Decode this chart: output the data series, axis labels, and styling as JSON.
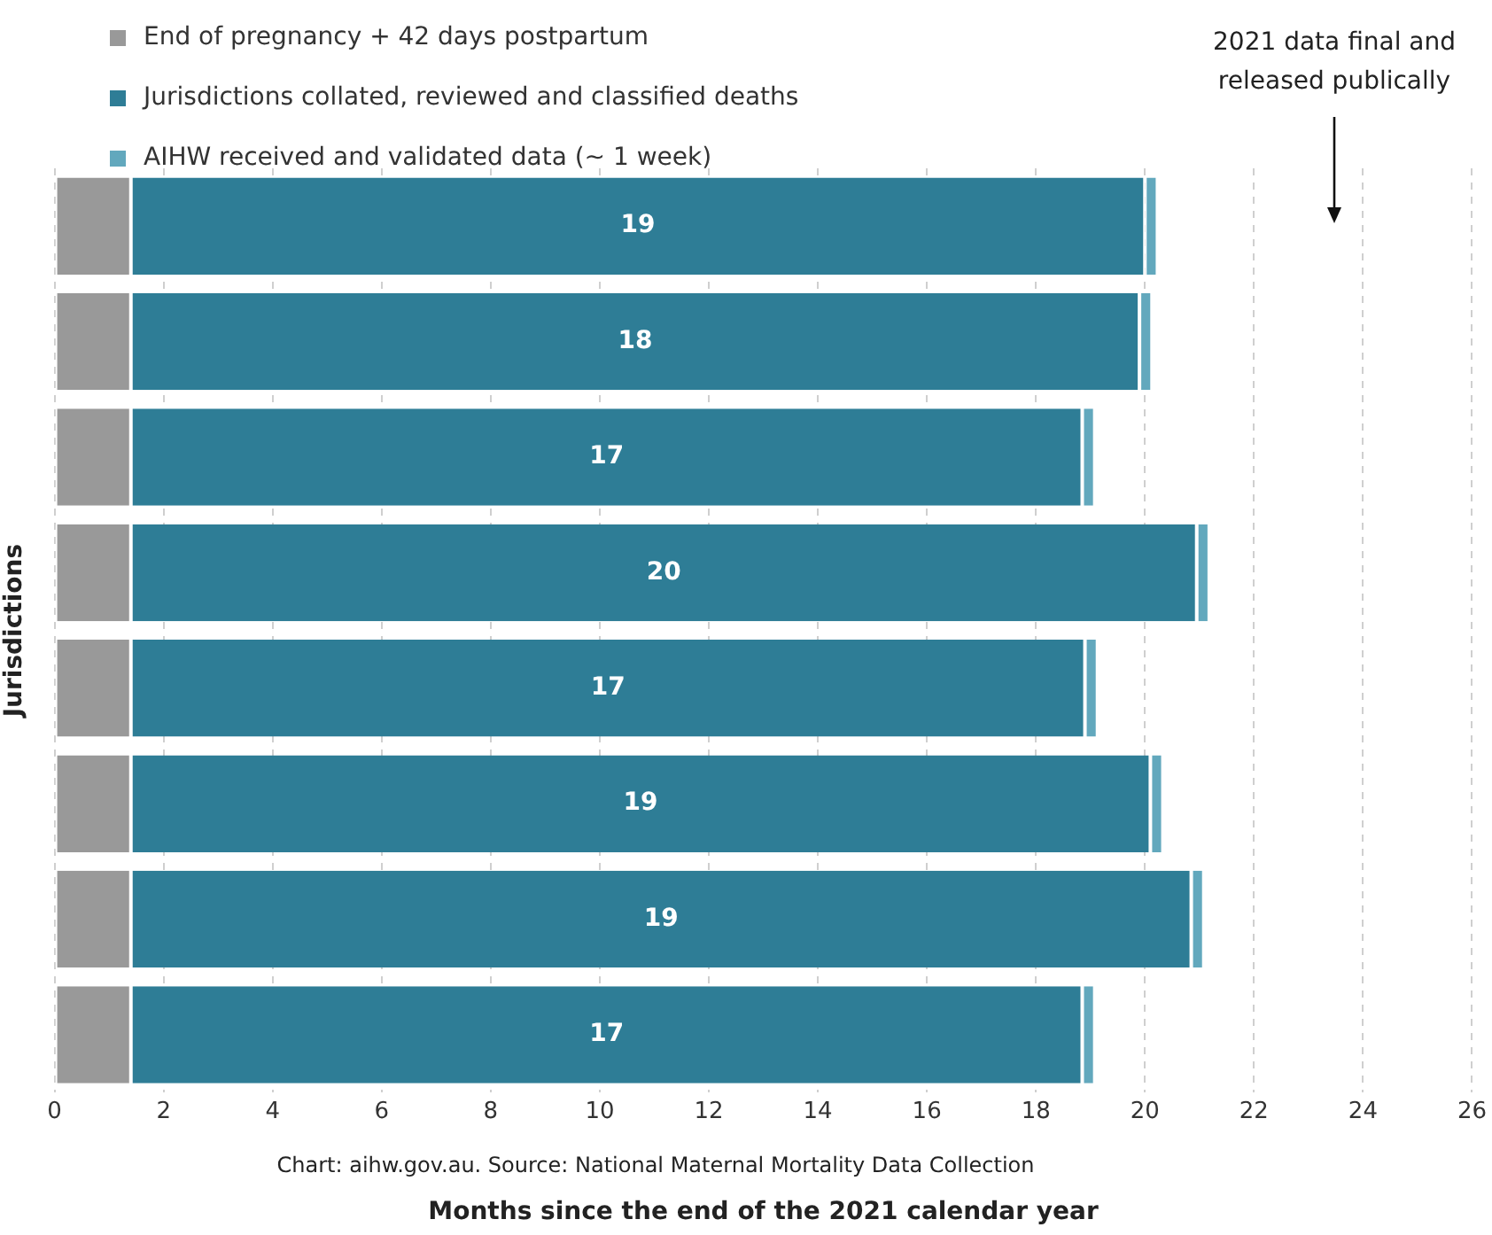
{
  "chart_data": {
    "type": "bar",
    "orientation": "horizontal",
    "stacked": true,
    "categories": [
      null,
      null,
      null,
      null,
      null,
      null,
      null,
      null
    ],
    "series": [
      {
        "name": "End of pregnancy + 42 days postpartum",
        "color": "#999999",
        "values": [
          1.4,
          1.4,
          1.4,
          1.4,
          1.4,
          1.4,
          1.4,
          1.4
        ]
      },
      {
        "name": "Jurisdictions collated, reviewed and classified deaths",
        "color": "#2e7d96",
        "values": [
          18.6,
          18.5,
          17.45,
          19.55,
          17.5,
          18.7,
          19.45,
          17.45
        ],
        "value_labels": [
          "19",
          "18",
          "17",
          "20",
          "17",
          "19",
          "19",
          "17"
        ]
      },
      {
        "name": "AIHW received and validated data (~ 1 week)",
        "color": "#62a8bd",
        "values": [
          0.23,
          0.23,
          0.23,
          0.23,
          0.23,
          0.23,
          0.23,
          0.23
        ]
      }
    ],
    "xlim": [
      0,
      26
    ],
    "xticks": [
      0,
      2,
      4,
      6,
      8,
      10,
      12,
      14,
      16,
      18,
      20,
      22,
      24,
      26
    ],
    "xlabel": "Months since the end of the 2021 calendar year",
    "ylabel": "Jurisdictions",
    "grid": "x",
    "line_style": "dashed",
    "legend": "top left",
    "annotations": [
      "2021 data final and released publically",
      "Chart: aihw.gov.au. Source: National Maternal Mortality Data Collection"
    ]
  }
}
